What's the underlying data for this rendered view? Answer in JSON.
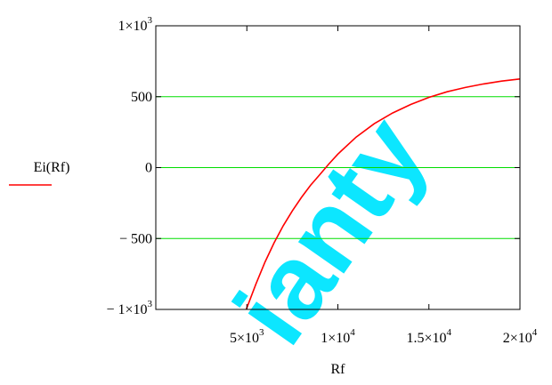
{
  "watermark": {
    "text": "ianty",
    "color": "#00e5ff"
  },
  "chart_data": {
    "type": "line",
    "xlabel": "Rf",
    "ylabel": "Ei(Rf)",
    "xlim": [
      0,
      20000
    ],
    "ylim": [
      -1000,
      1000
    ],
    "y_ticks": [
      {
        "value": 1000,
        "parts": [
          [
            "1×10",
            ""
          ],
          [
            "3",
            "sup"
          ]
        ]
      },
      {
        "value": 500,
        "parts": [
          [
            "500",
            ""
          ]
        ]
      },
      {
        "value": 0,
        "parts": [
          [
            "0",
            ""
          ]
        ]
      },
      {
        "value": -500,
        "parts": [
          [
            "− 500",
            ""
          ]
        ]
      },
      {
        "value": -1000,
        "parts": [
          [
            "− 1×10",
            ""
          ],
          [
            "3",
            "sup"
          ]
        ]
      }
    ],
    "x_ticks": [
      {
        "value": 5000,
        "parts": [
          [
            "5×10",
            ""
          ],
          [
            "3",
            "sup"
          ]
        ]
      },
      {
        "value": 10000,
        "parts": [
          [
            "1×10",
            ""
          ],
          [
            "4",
            "sup"
          ]
        ]
      },
      {
        "value": 15000,
        "parts": [
          [
            "1.5×10",
            ""
          ],
          [
            "4",
            "sup"
          ]
        ]
      },
      {
        "value": 20000,
        "parts": [
          [
            "2×10",
            ""
          ],
          [
            "4",
            "sup"
          ]
        ]
      }
    ],
    "gridlines_y": [
      500,
      0,
      -500
    ],
    "grid_color": "#00dd00",
    "series": [
      {
        "color": "#ff0000",
        "x": [
          4970,
          5500,
          6000,
          6500,
          7000,
          7500,
          8000,
          8500,
          9000,
          9500,
          10000,
          11000,
          12000,
          13000,
          14000,
          15000,
          16000,
          17000,
          18000,
          19000,
          20000
        ],
        "y": [
          -1000,
          -820,
          -665,
          -530,
          -410,
          -305,
          -210,
          -125,
          -50,
          25,
          95,
          215,
          310,
          385,
          445,
          495,
          535,
          565,
          590,
          610,
          625
        ]
      }
    ]
  }
}
